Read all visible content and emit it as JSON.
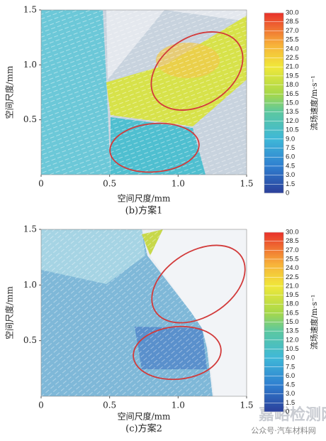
{
  "chart_data": [
    {
      "type": "vector-field",
      "caption": "(b)方案1",
      "xlabel": "空间尺度/mm",
      "ylabel": "空间尺度/mm",
      "xlim": [
        0,
        1.5
      ],
      "ylim": [
        0,
        1.5
      ],
      "xticks": [
        0,
        0.5,
        {
          "value": 1,
          "label": "1.0"
        },
        1.5
      ],
      "yticks": [
        0.5,
        {
          "value": 1,
          "label": "1.0"
        },
        1.5
      ],
      "colorbar": {
        "label": "流场速度/m·s⁻¹",
        "lim": [
          0,
          30
        ],
        "ticks": [
          0,
          {
            "value": 1.5,
            "label": "1.5"
          },
          {
            "value": 3,
            "label": "3.0"
          },
          4.5,
          {
            "value": 6,
            "label": "6.0"
          },
          7.5,
          {
            "value": 9,
            "label": "9.0"
          },
          10.5,
          {
            "value": 12,
            "label": "12.0"
          },
          13.5,
          {
            "value": 15,
            "label": "15.0"
          },
          16.5,
          {
            "value": 18,
            "label": "18.0"
          },
          19.5,
          {
            "value": 21,
            "label": "21.0"
          },
          22.5,
          {
            "value": 24,
            "label": "24.0"
          },
          25.5,
          {
            "value": 27,
            "label": "27.0"
          },
          28.5,
          {
            "value": 30,
            "label": "30.0"
          }
        ]
      }
    },
    {
      "type": "vector-field",
      "caption": "(c)方案2",
      "xlabel": "空间尺度/mm",
      "ylabel": "空间尺度/mm",
      "xlim": [
        0,
        1.5
      ],
      "ylim": [
        0,
        1.5
      ],
      "xticks": [
        0,
        0.5,
        {
          "value": 1,
          "label": "1.0"
        },
        1.5
      ],
      "yticks": [
        0.5,
        {
          "value": 1,
          "label": "1.0"
        },
        1.5
      ],
      "colorbar": {
        "label": "流场速度/m·s⁻¹",
        "lim": [
          0,
          30
        ],
        "ticks": [
          0,
          {
            "value": 1.5,
            "label": "1.5"
          },
          {
            "value": 3,
            "label": "3.0"
          },
          4.5,
          {
            "value": 6,
            "label": "6.0"
          },
          7.5,
          {
            "value": 9,
            "label": "9.0"
          },
          10.5,
          {
            "value": 12,
            "label": "12.0"
          },
          13.5,
          {
            "value": 15,
            "label": "15.0"
          },
          16.5,
          {
            "value": 18,
            "label": "18.0"
          },
          19.5,
          {
            "value": 21,
            "label": "21.0"
          },
          22.5,
          {
            "value": 24,
            "label": "24.0"
          },
          25.5,
          {
            "value": 27,
            "label": "27.0"
          },
          28.5,
          {
            "value": 30,
            "label": "30.0"
          }
        ]
      }
    }
  ],
  "watermark": {
    "site": "嘉峪检测网",
    "account": "公众号·汽车材料网"
  }
}
